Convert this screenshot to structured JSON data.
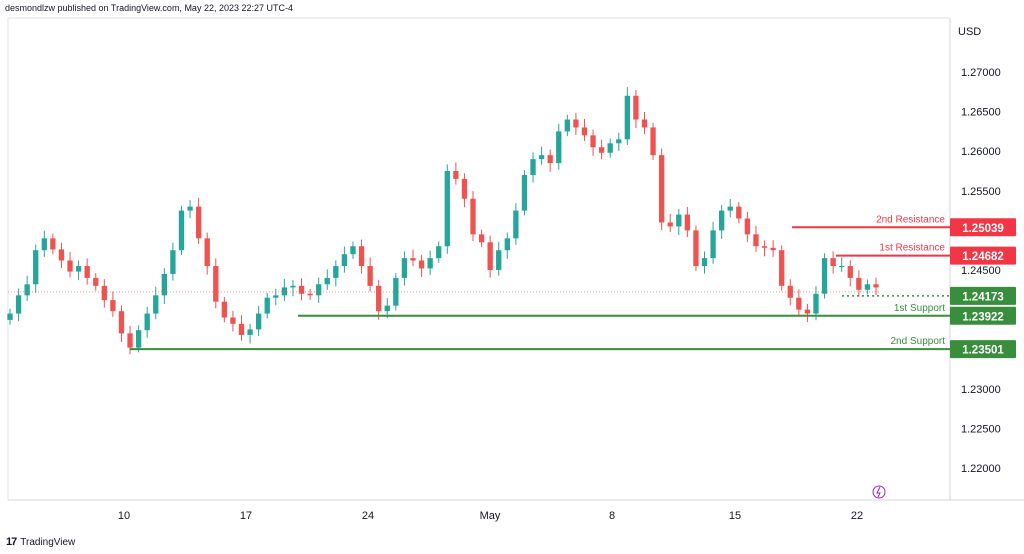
{
  "header": {
    "published": "desmondlzw published on TradingView.com, May 22, 2023 22:27 UTC-4"
  },
  "footer": {
    "brand_mark": "17",
    "brand": "TradingView"
  },
  "colors": {
    "up": "#26a69a",
    "down": "#ef5350",
    "resistance": "#f23645",
    "support": "#388e3c",
    "grid": "#f0f3fa",
    "axis_text": "#131722"
  },
  "chart_data": {
    "type": "candlestick",
    "currency": "USD",
    "ylim": [
      1.215,
      1.2725
    ],
    "y_ticks": [
      "1.27000",
      "1.26500",
      "1.26000",
      "1.25500",
      "1.25039",
      "1.24682",
      "1.24500",
      "1.24173",
      "1.23922",
      "1.23501",
      "1.23000",
      "1.22500",
      "1.22000"
    ],
    "x_ticks": [
      {
        "label": "10",
        "date": "2023-04-10"
      },
      {
        "label": "17",
        "date": "2023-04-17"
      },
      {
        "label": "24",
        "date": "2023-04-24"
      },
      {
        "label": "May",
        "date": "2023-05-01"
      },
      {
        "label": "8",
        "date": "2023-05-08"
      },
      {
        "label": "15",
        "date": "2023-05-15"
      },
      {
        "label": "22",
        "date": "2023-05-22"
      }
    ],
    "levels": [
      {
        "label": "2nd Resistance",
        "value": "1.25039",
        "kind": "resistance"
      },
      {
        "label": "1st Resistance",
        "value": "1.24682",
        "kind": "resistance"
      },
      {
        "label": "",
        "value": "1.24173",
        "kind": "current"
      },
      {
        "label": "1st Support",
        "value": "1.23922",
        "kind": "support"
      },
      {
        "label": "2nd Support",
        "value": "1.23501",
        "kind": "support"
      }
    ],
    "close_path": [
      1.2395,
      1.2418,
      1.2432,
      1.2475,
      1.249,
      1.2476,
      1.2462,
      1.2448,
      1.2455,
      1.244,
      1.243,
      1.2412,
      1.2398,
      1.237,
      1.2352,
      1.2374,
      1.2395,
      1.2418,
      1.2445,
      1.2475,
      1.2525,
      1.253,
      1.249,
      1.2455,
      1.241,
      1.239,
      1.2382,
      1.2368,
      1.2375,
      1.2395,
      1.2415,
      1.2418,
      1.2428,
      1.243,
      1.242,
      1.2418,
      1.2432,
      1.244,
      1.2455,
      1.247,
      1.248,
      1.2455,
      1.243,
      1.2398,
      1.2405,
      1.244,
      1.2465,
      1.2462,
      1.2452,
      1.2465,
      1.248,
      1.2575,
      1.2565,
      1.254,
      1.2495,
      1.2485,
      1.245,
      1.2475,
      1.249,
      1.2525,
      1.257,
      1.259,
      1.2595,
      1.2585,
      1.2625,
      1.264,
      1.263,
      1.262,
      1.2605,
      1.2598,
      1.261,
      1.2615,
      1.267,
      1.264,
      1.263,
      1.2595,
      1.251,
      1.2505,
      1.252,
      1.25,
      1.2455,
      1.2465,
      1.25,
      1.2525,
      1.253,
      1.2515,
      1.2495,
      1.248,
      1.2478,
      1.2475,
      1.243,
      1.2415,
      1.24,
      1.2395,
      1.242,
      1.2465,
      1.2455,
      1.2455,
      1.244,
      1.2425,
      1.2432,
      1.2428
    ]
  }
}
